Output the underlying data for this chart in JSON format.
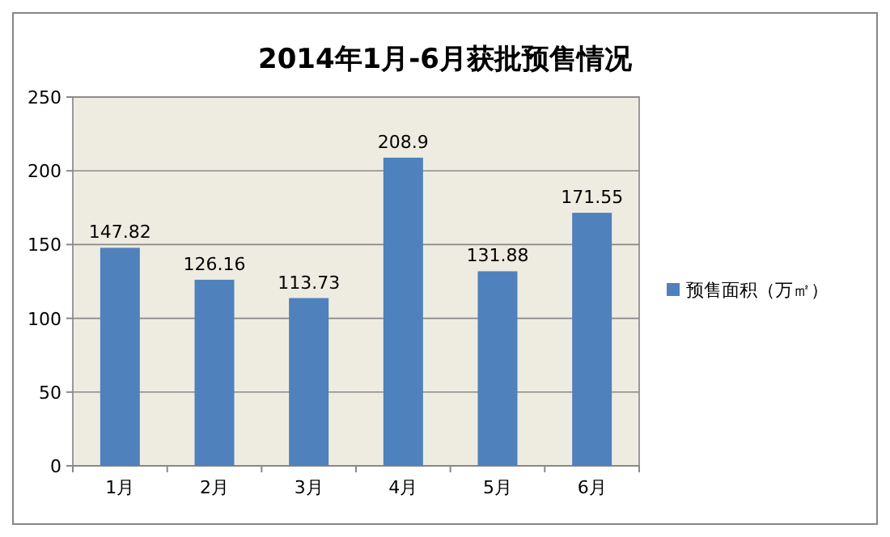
{
  "chart_data": {
    "type": "bar",
    "title": "2014年1月-6月获批预售情况",
    "categories": [
      "1月",
      "2月",
      "3月",
      "4月",
      "5月",
      "6月"
    ],
    "series": [
      {
        "name": "预售面积（万㎡）",
        "color": "#4f81bd",
        "values": [
          147.82,
          126.16,
          113.73,
          208.9,
          131.88,
          171.55
        ]
      }
    ],
    "ylim": [
      0,
      250
    ],
    "yticks": [
      0,
      50,
      100,
      150,
      200,
      250
    ],
    "grid": "y",
    "legend": "right",
    "data_labels": true
  }
}
